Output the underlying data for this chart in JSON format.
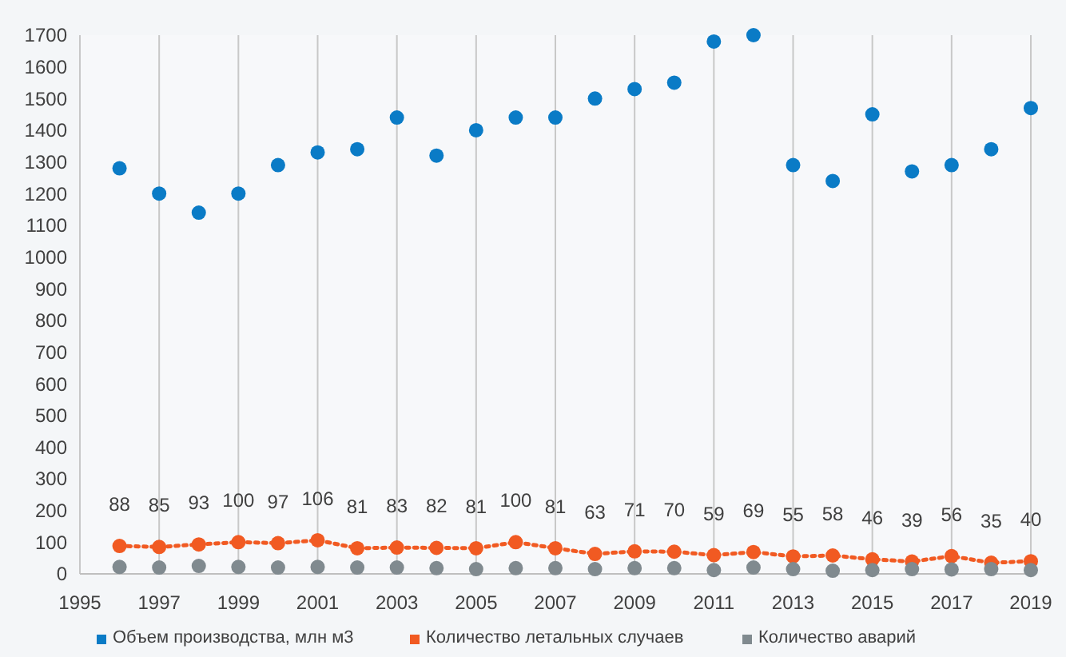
{
  "chart_data": {
    "type": "scatter",
    "x": [
      1996,
      1997,
      1998,
      1999,
      2000,
      2001,
      2002,
      2003,
      2004,
      2005,
      2006,
      2007,
      2008,
      2009,
      2010,
      2011,
      2012,
      2013,
      2014,
      2015,
      2016,
      2017,
      2018,
      2019
    ],
    "xlim": [
      1995,
      2019
    ],
    "xticks": [
      1995,
      1997,
      1999,
      2001,
      2003,
      2005,
      2007,
      2009,
      2011,
      2013,
      2015,
      2017,
      2019
    ],
    "ylim": [
      0,
      1700
    ],
    "yticks": [
      0,
      100,
      200,
      300,
      400,
      500,
      600,
      700,
      800,
      900,
      1000,
      1100,
      1200,
      1300,
      1400,
      1500,
      1600,
      1700
    ],
    "grid": "x",
    "legend": "bottom",
    "marker": "circle",
    "series": [
      {
        "name": "Объем производства, млн м3",
        "color": "#0a7bc6",
        "values": [
          1280,
          1200,
          1140,
          1200,
          1290,
          1330,
          1340,
          1440,
          1320,
          1400,
          1440,
          1440,
          1500,
          1530,
          1550,
          1680,
          1700,
          1290,
          1240,
          1450,
          1270,
          1290,
          1340,
          1470
        ]
      },
      {
        "name": "Количество летальных случаев",
        "color": "#f15a22",
        "type": "line",
        "line_style": "dotted",
        "values": [
          88,
          85,
          93,
          100,
          97,
          106,
          81,
          83,
          82,
          81,
          100,
          81,
          63,
          71,
          70,
          59,
          69,
          55,
          58,
          46,
          39,
          56,
          35,
          40
        ],
        "value_labels": [
          "88",
          "85",
          "93",
          "100",
          "97",
          "106",
          "81",
          "83",
          "82",
          "81",
          "100",
          "81",
          "63",
          "71",
          "70",
          "59",
          "69",
          "55",
          "58",
          "46",
          "39",
          "56",
          "35",
          "40"
        ]
      },
      {
        "name": "Количество аварий",
        "color": "#808a8f",
        "values": [
          22,
          20,
          25,
          22,
          20,
          22,
          20,
          20,
          18,
          15,
          18,
          18,
          15,
          18,
          18,
          12,
          20,
          15,
          10,
          12,
          15,
          14,
          15,
          12
        ]
      }
    ]
  }
}
